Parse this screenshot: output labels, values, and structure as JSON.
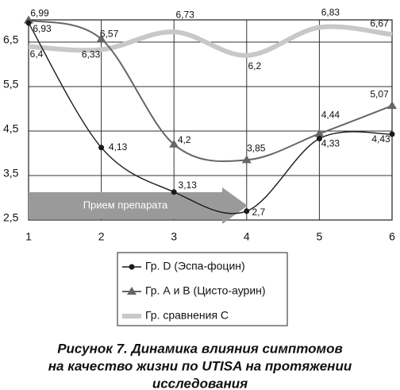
{
  "chart_data": {
    "type": "line",
    "x": [
      1,
      2,
      3,
      4,
      5,
      6
    ],
    "xlim": [
      1,
      6
    ],
    "xticks": [
      1,
      2,
      3,
      4,
      5,
      6
    ],
    "ylim": [
      2.5,
      7
    ],
    "yticks": [
      {
        "value": 2.5,
        "label": "2,5"
      },
      {
        "value": 3.5,
        "label": "3,5"
      },
      {
        "value": 4.5,
        "label": "4,5"
      },
      {
        "value": 5.5,
        "label": "5,5"
      },
      {
        "value": 6.5,
        "label": "6,5"
      }
    ],
    "grid": true,
    "annotation": "Прием препарата",
    "series": [
      {
        "name": "Гр. D (Эспа-фоцин)",
        "color": "#1a1a1a",
        "marker": "circle",
        "values": [
          6.93,
          4.13,
          3.13,
          2.7,
          4.33,
          4.43
        ],
        "value_labels": [
          "6,93",
          "4,13",
          "3,13",
          "2,7",
          "4,33",
          "4,43"
        ]
      },
      {
        "name": "Гр. А и В (Цисто-аурин)",
        "color": "#666666",
        "marker": "triangle",
        "values": [
          6.99,
          6.57,
          4.2,
          3.85,
          4.44,
          5.07
        ],
        "value_labels": [
          "6,99",
          "6,57",
          "4,2",
          "3,85",
          "4,44",
          "5,07"
        ]
      },
      {
        "name": "Гр. сравнения С",
        "color": "#c8c8c8",
        "marker": "none",
        "values": [
          6.4,
          6.33,
          6.73,
          6.2,
          6.83,
          6.67
        ],
        "value_labels": [
          "6,4",
          "6,33",
          "6,73",
          "6,2",
          "6,83",
          "6,67"
        ]
      }
    ],
    "caption": [
      "Рисунок 7. Динамика влияния симптомов",
      "на качество жизни по UTISA на протяжении",
      "исследования"
    ]
  }
}
